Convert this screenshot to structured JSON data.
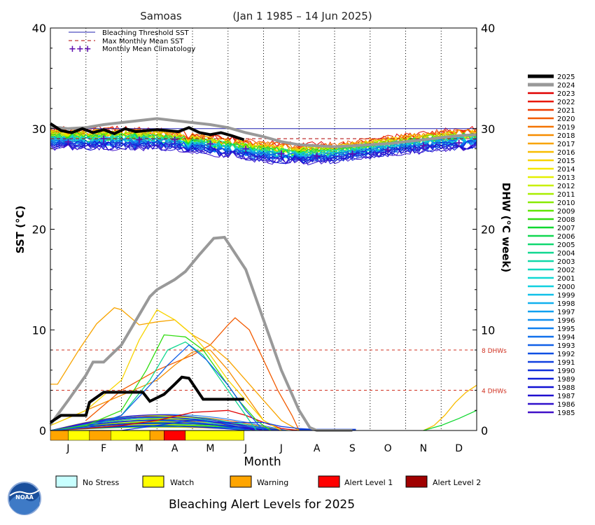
{
  "chart_data": {
    "type": "line",
    "title": "Samoas",
    "date_range": "(Jan 1 1985 – 14 Jun 2025)",
    "xlabel": "Month",
    "ylabel_left": "SST (°C)",
    "ylabel_right": "DHW (°C week)",
    "ylim": [
      0,
      40
    ],
    "yticks": [
      0,
      10,
      20,
      30,
      40
    ],
    "months": [
      "J",
      "F",
      "M",
      "A",
      "M",
      "J",
      "J",
      "A",
      "S",
      "O",
      "N",
      "D"
    ],
    "legend": [
      {
        "label": "Bleaching Threshold SST",
        "color": "#2020b0",
        "style": "solid"
      },
      {
        "label": "Max Monthly Mean SST",
        "color": "#b00000",
        "style": "dashed"
      },
      {
        "label": "Monthly Mean Climatology",
        "color": "#6010b0",
        "style": "plus"
      }
    ],
    "bleaching_threshold_sst": 30.0,
    "max_monthly_mean_sst": 29.0,
    "monthly_mean_climatology": [
      28.7,
      29.0,
      28.9,
      28.9,
      28.5,
      28.0,
      27.5,
      27.3,
      27.5,
      27.9,
      28.3,
      28.6
    ],
    "dhw_reference_lines": [
      {
        "value": 8,
        "label": "8 DHWs",
        "color": "#d03020"
      },
      {
        "value": 4,
        "label": "4 DHWs",
        "color": "#d03020"
      }
    ],
    "years": [
      "2025",
      "2024",
      "2023",
      "2022",
      "2021",
      "2020",
      "2019",
      "2018",
      "2017",
      "2016",
      "2015",
      "2014",
      "2013",
      "2012",
      "2011",
      "2010",
      "2009",
      "2008",
      "2007",
      "2006",
      "2005",
      "2004",
      "2003",
      "2002",
      "2001",
      "2000",
      "1999",
      "1998",
      "1997",
      "1996",
      "1995",
      "1994",
      "1993",
      "1992",
      "1991",
      "1990",
      "1989",
      "1988",
      "1987",
      "1986",
      "1985"
    ],
    "year_colors": [
      "#000000",
      "#999999",
      "#e00000",
      "#e81800",
      "#ee3a00",
      "#f25a00",
      "#f47400",
      "#f68c00",
      "#f8a400",
      "#f8bc00",
      "#f8d400",
      "#f4e800",
      "#e4f000",
      "#c8f000",
      "#a8ee00",
      "#88ea00",
      "#60e600",
      "#30dc10",
      "#10d830",
      "#10d850",
      "#10d870",
      "#10d890",
      "#10d8a8",
      "#10d8c0",
      "#10d8d4",
      "#10d0e0",
      "#10c0e8",
      "#10b0ee",
      "#10a0f0",
      "#1090f0",
      "#1080f0",
      "#1070ec",
      "#1060e8",
      "#1050e4",
      "#1040e0",
      "#1030dc",
      "#1020d8",
      "#1010d4",
      "#2010d0",
      "#3010cc",
      "#4010c8"
    ],
    "sst_2025": {
      "x": [
        0.0,
        0.3,
        0.6,
        0.9,
        1.2,
        1.5,
        1.8,
        2.1,
        2.4,
        2.7,
        3.0,
        3.3,
        3.6,
        3.9,
        4.2,
        4.5,
        4.8,
        5.1,
        5.45
      ],
      "y": [
        30.5,
        29.8,
        29.6,
        30.0,
        29.6,
        29.9,
        29.5,
        30.0,
        29.7,
        29.8,
        29.9,
        29.8,
        29.7,
        30.1,
        29.6,
        29.4,
        29.6,
        29.3,
        28.9
      ]
    },
    "sst_2024": {
      "x": [
        0.0,
        0.5,
        1.0,
        1.5,
        2.0,
        2.5,
        3.0,
        3.5,
        4.0,
        4.5,
        5.0,
        5.5,
        6.0,
        6.5,
        7.0,
        7.5,
        8.0,
        8.5,
        9.0,
        9.5,
        10.0,
        10.5,
        11.0,
        11.5,
        12.0
      ],
      "y": [
        30.2,
        30.0,
        30.1,
        30.4,
        30.6,
        30.8,
        31.0,
        30.8,
        30.6,
        30.4,
        30.1,
        29.6,
        29.2,
        28.7,
        28.4,
        28.3,
        28.2,
        28.3,
        28.4,
        28.5,
        28.7,
        28.9,
        29.1,
        29.3,
        29.4
      ]
    },
    "sst_band_upper": [
      30.8,
      30.8,
      30.8,
      30.6,
      30.3,
      29.8,
      29.4,
      29.1,
      29.2,
      29.6,
      30.1,
      30.5,
      30.8
    ],
    "sst_band_lower": [
      27.3,
      27.2,
      27.2,
      27.3,
      27.0,
      26.5,
      26.0,
      25.8,
      26.0,
      26.5,
      26.9,
      27.2,
      27.3
    ],
    "dhw_2025": {
      "x": [
        0.0,
        0.3,
        1.0,
        1.1,
        1.5,
        2.0,
        2.6,
        2.8,
        3.2,
        3.5,
        3.7,
        3.9,
        4.3,
        4.7,
        5.45
      ],
      "y": [
        0.8,
        1.5,
        1.5,
        2.8,
        3.8,
        3.8,
        3.8,
        2.9,
        3.6,
        4.6,
        5.3,
        5.2,
        3.1,
        3.1,
        3.1
      ]
    },
    "dhw_2024": {
      "x": [
        0.0,
        0.5,
        1.0,
        1.2,
        1.5,
        2.0,
        2.5,
        2.8,
        3.0,
        3.5,
        3.8,
        4.2,
        4.6,
        4.9,
        5.5,
        6.0,
        6.5,
        7.0,
        7.3,
        7.5,
        8.5
      ],
      "y": [
        0.6,
        3.0,
        5.5,
        6.8,
        6.8,
        8.5,
        11.5,
        13.3,
        14.0,
        15.0,
        15.8,
        17.5,
        19.1,
        19.2,
        16.0,
        11.0,
        6.0,
        2.0,
        0.3,
        0.0,
        0.0
      ]
    },
    "dhw_2023": {
      "x": [
        0.0,
        1.0,
        2.0,
        3.0,
        4.0,
        5.0,
        5.5,
        6.0,
        6.5,
        7.0
      ],
      "y": [
        0.0,
        0.2,
        0.5,
        1.0,
        1.8,
        2.0,
        1.5,
        0.8,
        0.2,
        0.0
      ]
    },
    "dhw_2020": {
      "x": [
        1.0,
        2.0,
        3.0,
        4.0,
        4.5,
        5.0,
        5.2,
        5.6,
        6.0,
        6.4,
        6.8,
        7.0
      ],
      "y": [
        1.0,
        4.0,
        6.0,
        7.5,
        8.5,
        10.5,
        11.2,
        10.0,
        7.0,
        4.0,
        1.5,
        0.0
      ]
    },
    "dhw_2017": {
      "x": [
        0.0,
        0.2,
        0.8,
        1.3,
        1.8,
        2.0,
        2.5,
        3.0,
        3.5,
        4.0,
        4.5,
        5.0,
        5.5,
        6.0,
        6.5,
        7.0
      ],
      "y": [
        4.6,
        4.6,
        8.0,
        10.6,
        12.2,
        12.0,
        10.5,
        10.8,
        11.0,
        9.5,
        8.5,
        7.0,
        5.0,
        3.0,
        1.0,
        0.0
      ]
    },
    "dhw_2015": {
      "x": [
        0.0,
        1.0,
        2.0,
        2.5,
        3.0,
        3.5,
        4.0,
        4.5,
        5.0,
        5.5,
        6.0,
        6.5
      ],
      "y": [
        0.5,
        2.0,
        5.0,
        9.0,
        12.0,
        11.0,
        9.5,
        7.5,
        5.0,
        3.0,
        1.0,
        0.0
      ]
    },
    "dhw_2018": {
      "x": [
        0.0,
        1.0,
        2.0,
        3.0,
        3.5,
        4.0,
        4.5,
        5.0,
        5.5,
        6.0,
        6.5
      ],
      "y": [
        0.5,
        2.0,
        3.5,
        5.0,
        6.5,
        7.8,
        8.0,
        6.0,
        3.5,
        1.0,
        0.0
      ]
    },
    "dhw_2009": {
      "x": [
        0.0,
        1.0,
        2.0,
        2.7,
        3.2,
        3.8,
        4.3,
        4.8,
        5.3,
        5.8,
        6.2
      ],
      "y": [
        0.0,
        0.5,
        2.0,
        6.0,
        9.5,
        9.3,
        8.0,
        5.5,
        3.0,
        1.0,
        0.0
      ]
    },
    "dhw_2004": {
      "x": [
        0.0,
        1.0,
        2.0,
        2.8,
        3.3,
        3.8,
        4.3,
        4.8,
        5.3,
        5.8
      ],
      "y": [
        0.0,
        0.3,
        1.5,
        5.0,
        8.0,
        8.8,
        7.5,
        5.0,
        2.5,
        0.0
      ]
    },
    "dhw_1993": {
      "x": [
        0.0,
        1.0,
        2.0,
        2.8,
        3.3,
        3.9,
        4.4,
        5.0,
        5.5,
        6.0
      ],
      "y": [
        0.0,
        0.3,
        1.5,
        4.5,
        6.5,
        8.5,
        7.0,
        4.5,
        2.0,
        0.0
      ]
    },
    "dhw_1991": {
      "x": [
        0.0,
        2.0,
        3.0,
        4.0,
        5.0,
        6.0,
        6.5,
        7.0,
        7.5,
        8.0,
        8.5
      ],
      "y": [
        0.0,
        0.0,
        0.5,
        1.0,
        0.8,
        0.8,
        0.4,
        0.2,
        0.1,
        0.0,
        0.0
      ]
    },
    "dhw_2016_late": {
      "x": [
        10.5,
        10.8,
        11.1,
        11.4,
        11.7,
        12.0
      ],
      "y": [
        0.0,
        0.5,
        1.5,
        2.8,
        3.8,
        4.5
      ]
    },
    "dhw_2023_late": {
      "x": [
        10.5,
        11.0,
        11.5,
        12.0
      ],
      "y": [
        0.0,
        0.5,
        1.2,
        2.0
      ]
    },
    "alert_strip_2025": [
      {
        "from": 0.0,
        "to": 0.5,
        "level": "Warning"
      },
      {
        "from": 0.5,
        "to": 1.1,
        "level": "Watch"
      },
      {
        "from": 1.1,
        "to": 1.7,
        "level": "Warning"
      },
      {
        "from": 1.7,
        "to": 2.8,
        "level": "Watch"
      },
      {
        "from": 2.8,
        "to": 3.2,
        "level": "Warning"
      },
      {
        "from": 3.2,
        "to": 3.8,
        "level": "Alert Level 1"
      },
      {
        "from": 3.8,
        "to": 5.45,
        "level": "Watch"
      }
    ]
  },
  "alert_legend": {
    "title": "Bleaching Alert Levels for 2025",
    "items": [
      {
        "label": "No Stress",
        "color": "#c8ffff"
      },
      {
        "label": "Watch",
        "color": "#ffff00"
      },
      {
        "label": "Warning",
        "color": "#ffa500"
      },
      {
        "label": "Alert Level 1",
        "color": "#ff0000"
      },
      {
        "label": "Alert Level 2",
        "color": "#a00000"
      }
    ]
  },
  "logo": {
    "text": "NOAA"
  }
}
